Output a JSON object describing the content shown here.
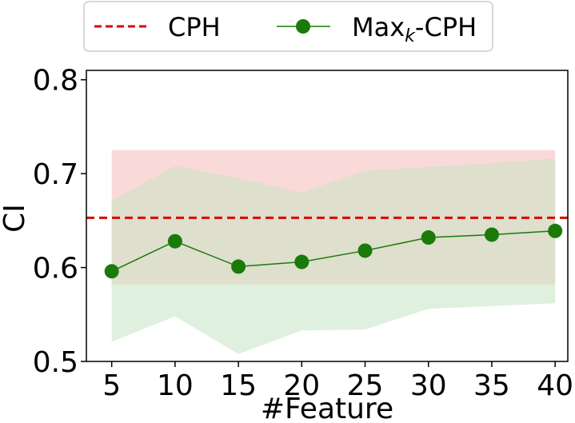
{
  "chart_data": {
    "type": "line",
    "xlabel": "#Feature",
    "ylabel": "CI",
    "x": [
      5,
      10,
      15,
      20,
      25,
      30,
      35,
      40
    ],
    "xticks": [
      "5",
      "10",
      "15",
      "20",
      "25",
      "30",
      "35",
      "40"
    ],
    "xlim": [
      3,
      41
    ],
    "ylim": [
      0.5,
      0.81
    ],
    "yticks": [
      0.5,
      0.6,
      0.7,
      0.8
    ],
    "ytick_labels": [
      "0.5",
      "0.6",
      "0.7",
      "0.8"
    ],
    "legend": {
      "placement": "top",
      "cph": "CPH",
      "max_pre": "Max",
      "max_sub": "k",
      "max_post": "-CPH"
    },
    "reference_line": {
      "name": "CPH",
      "y": 0.653,
      "band": [
        0.582,
        0.725
      ],
      "color": "#dd0000",
      "band_color": "#f8c4c4"
    },
    "series": [
      {
        "name": "Max_k-CPH",
        "values": [
          0.596,
          0.628,
          0.601,
          0.606,
          0.618,
          0.632,
          0.635,
          0.639
        ],
        "lower": [
          0.521,
          0.548,
          0.508,
          0.533,
          0.534,
          0.556,
          0.559,
          0.562
        ],
        "upper": [
          0.671,
          0.708,
          0.695,
          0.68,
          0.703,
          0.707,
          0.711,
          0.716
        ],
        "color": "#1a7a0a",
        "band_color": "#c6e3c3"
      }
    ],
    "grid": false
  }
}
